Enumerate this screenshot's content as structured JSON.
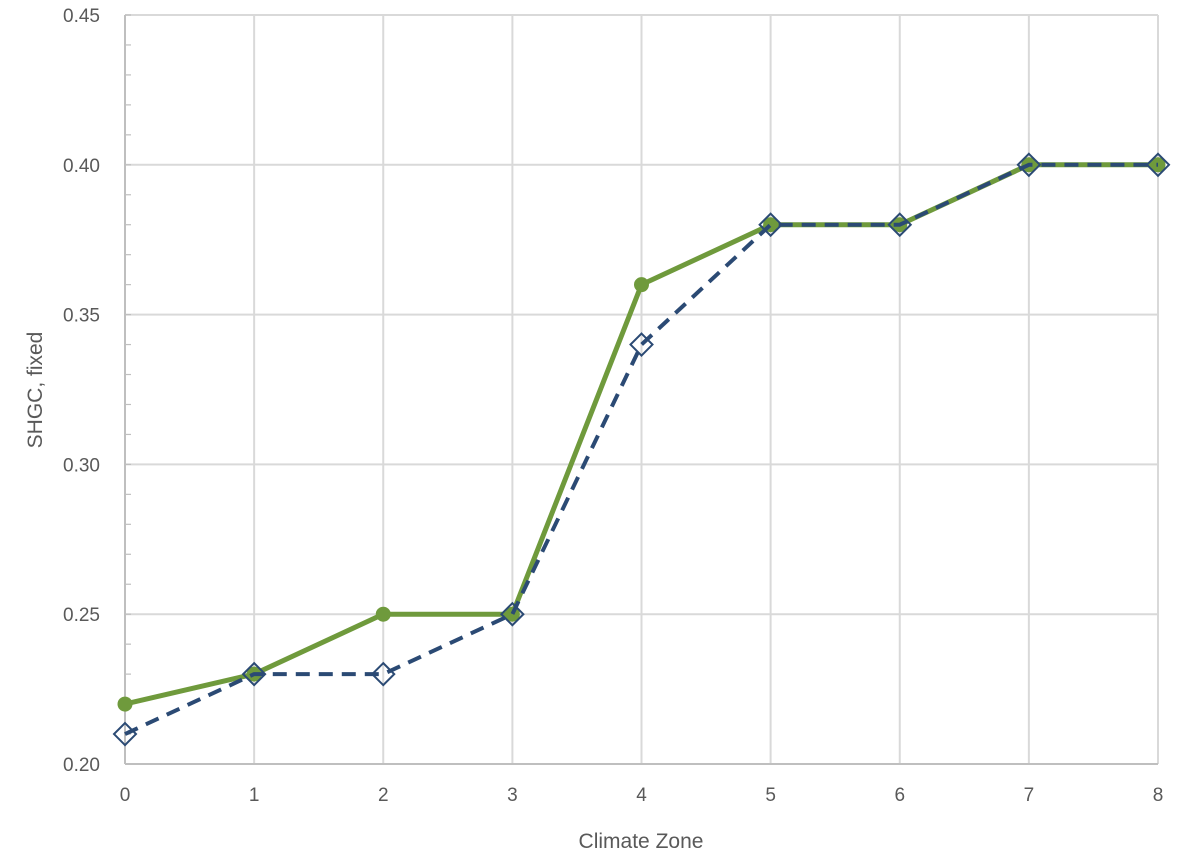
{
  "chart_data": {
    "type": "line",
    "title": "",
    "xlabel": "Climate Zone",
    "ylabel": "SHGC, fixed",
    "x": [
      0,
      1,
      2,
      3,
      4,
      5,
      6,
      7,
      8
    ],
    "xlim": [
      0,
      8
    ],
    "ylim": [
      0.2,
      0.45
    ],
    "x_ticks": [
      "0",
      "1",
      "2",
      "3",
      "4",
      "5",
      "6",
      "7",
      "8"
    ],
    "y_ticks": [
      "0.20",
      "0.25",
      "0.30",
      "0.35",
      "0.40",
      "0.45"
    ],
    "grid": true,
    "legend": "none",
    "series": [
      {
        "values": [
          0.22,
          0.23,
          0.25,
          0.25,
          0.36,
          0.38,
          0.38,
          0.4,
          0.4
        ],
        "color": "#6f9a3c",
        "line_style": "solid",
        "marker": "circle"
      },
      {
        "values": [
          0.21,
          0.23,
          0.23,
          0.25,
          0.34,
          0.38,
          0.38,
          0.4,
          0.4
        ],
        "color": "#2b4a74",
        "line_style": "dashed",
        "marker": "open-diamond"
      }
    ]
  }
}
